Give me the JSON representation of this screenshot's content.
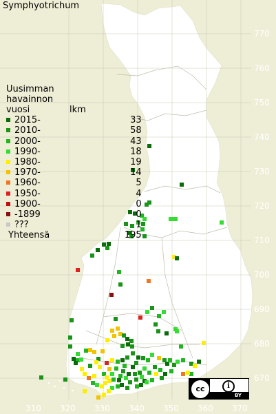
{
  "title": "Symphyotrichum",
  "legend": {
    "heading_lines": [
      "Uusimman",
      "havainnon"
    ],
    "col_year": "vuosi",
    "col_count": "lkm",
    "items": [
      {
        "label": "2015-",
        "count": "33",
        "color": "#0a6b0a"
      },
      {
        "label": "2010-",
        "count": "58",
        "color": "#199419"
      },
      {
        "label": "2000-",
        "count": "43",
        "color": "#22b522"
      },
      {
        "label": "1990-",
        "count": "18",
        "color": "#33dd33"
      },
      {
        "label": "1980-",
        "count": "19",
        "color": "#ffee00"
      },
      {
        "label": "1970-",
        "count": "14",
        "color": "#f2c300"
      },
      {
        "label": "1960-",
        "count": "5",
        "color": "#ee7722"
      },
      {
        "label": "1950-",
        "count": "4",
        "color": "#dd2222"
      },
      {
        "label": "1900-",
        "count": "0",
        "color": "#bb1111"
      },
      {
        "label": "-1899",
        "count": "0",
        "color": "#881111"
      },
      {
        "label": "???",
        "count": "1",
        "color": "#c8c8c8"
      }
    ],
    "total_label": "Yhteensä",
    "total_count": "195"
  },
  "axes": {
    "y_labels": [
      "770",
      "760",
      "750",
      "740",
      "730",
      "720",
      "710",
      "700",
      "690",
      "680",
      "670"
    ],
    "x_labels": [
      "310",
      "320",
      "330",
      "340",
      "350",
      "360",
      "370"
    ]
  },
  "license": {
    "cc": "cc",
    "by": "BY"
  },
  "colors": {
    "land": "#ffffff",
    "sea": "#eeeed6",
    "grid": "#c8c8b4"
  }
}
